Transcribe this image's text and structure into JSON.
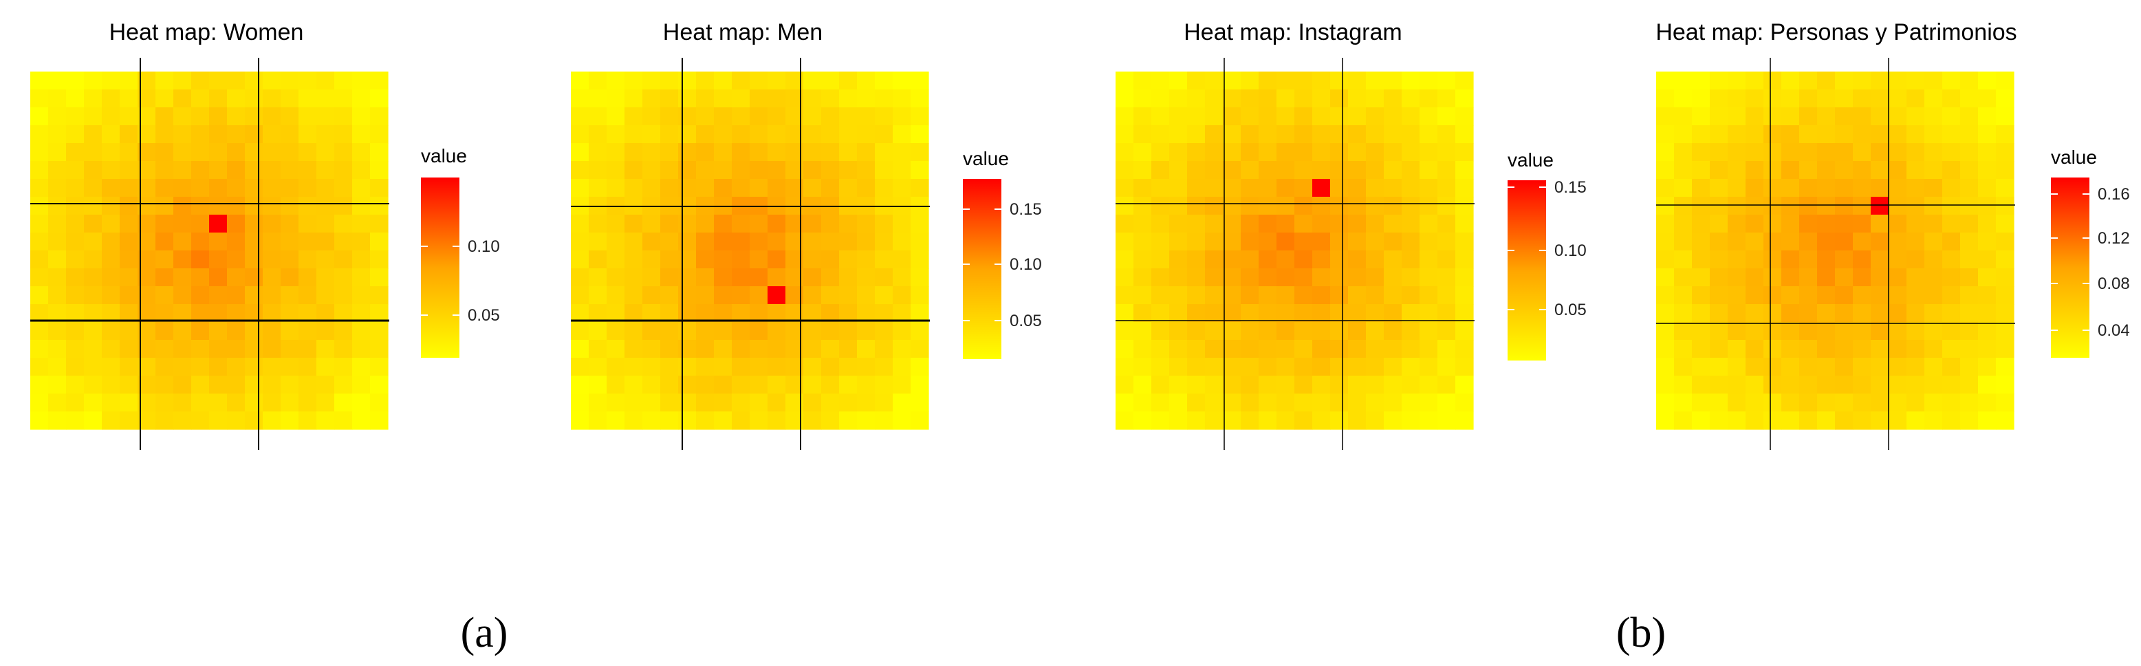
{
  "chart_data": [
    {
      "type": "heatmap",
      "title": "Heat map: Women",
      "grid_size": [
        20,
        20
      ],
      "legend": {
        "title": "value",
        "ticks": [
          "0.05",
          "0.10"
        ],
        "range": [
          0.02,
          0.145
        ]
      },
      "peak": {
        "row": 8,
        "col": 10,
        "value": 0.145
      },
      "colorscale": [
        "#ffff00",
        "#ffa500",
        "#ff0000"
      ]
    },
    {
      "type": "heatmap",
      "title": "Heat map: Men",
      "grid_size": [
        20,
        20
      ],
      "legend": {
        "title": "value",
        "ticks": [
          "0.05",
          "0.10",
          "0.15"
        ],
        "range": [
          0.02,
          0.175
        ]
      },
      "peak": {
        "row": 12,
        "col": 11,
        "value": 0.175
      },
      "colorscale": [
        "#ffff00",
        "#ffa500",
        "#ff0000"
      ]
    },
    {
      "type": "heatmap",
      "title": "Heat map: Instagram",
      "grid_size": [
        20,
        20
      ],
      "legend": {
        "title": "value",
        "ticks": [
          "0.05",
          "0.10",
          "0.15"
        ],
        "range": [
          0.02,
          0.155
        ]
      },
      "peak": {
        "row": 6,
        "col": 11,
        "value": 0.155
      },
      "colorscale": [
        "#ffff00",
        "#ffa500",
        "#ff0000"
      ]
    },
    {
      "type": "heatmap",
      "title": "Heat map: Personas y Patrimonios",
      "grid_size": [
        20,
        20
      ],
      "legend": {
        "title": "value",
        "ticks": [
          "0.04",
          "0.08",
          "0.12",
          "0.16"
        ],
        "range": [
          0.02,
          0.165
        ]
      },
      "peak": {
        "row": 7,
        "col": 12,
        "value": 0.165
      },
      "colorscale": [
        "#ffff00",
        "#ffa500",
        "#ff0000"
      ]
    }
  ],
  "subfigure_labels": [
    "(a)",
    "(b)"
  ]
}
